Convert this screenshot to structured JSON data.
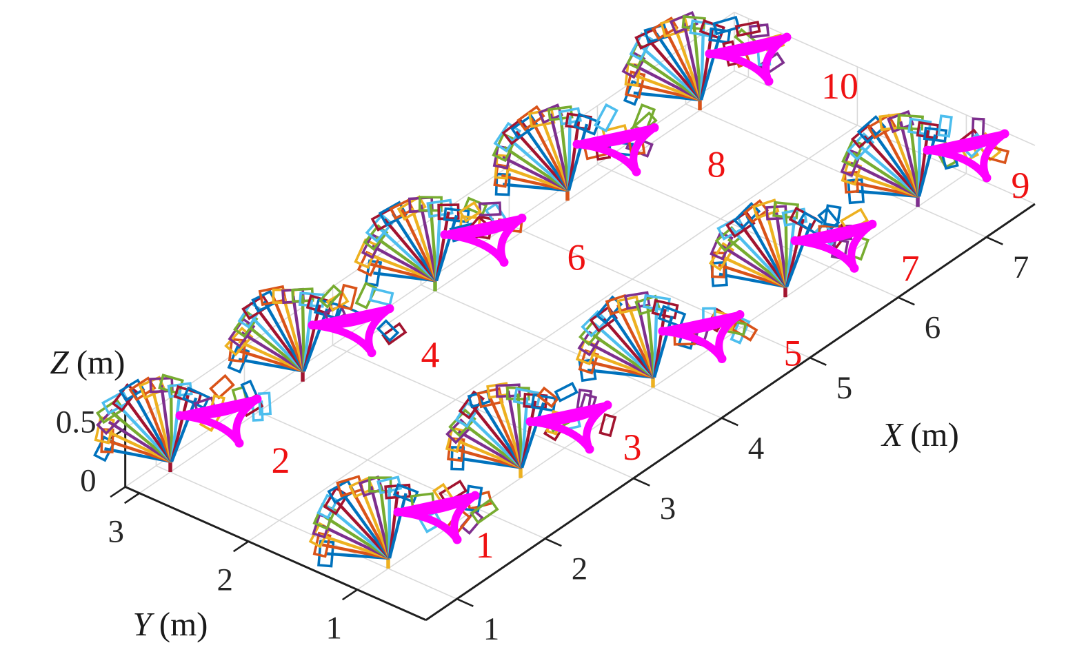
{
  "chart_data": {
    "type": "scatter",
    "title": "",
    "description": "MATLAB-style 3D plot of 10 numbered robot pose-fan trajectory clusters on a ground grid; each cluster shows a fan of colored link poses rising from a base point and a thick magenta three-cusp end-effector trajectory",
    "xlabel_letter": "X",
    "xlabel_unit": "(m)",
    "ylabel_letter": "Y",
    "ylabel_unit": "(m)",
    "zlabel_letter": "Z",
    "zlabel_unit": "(m)",
    "x_ticks": [
      1,
      2,
      3,
      4,
      5,
      6,
      7
    ],
    "y_ticks": [
      1,
      2,
      3
    ],
    "z_ticks": [
      0,
      0.5
    ],
    "xlim": [
      0.65,
      7.55
    ],
    "ylim": [
      0.37,
      3.13
    ],
    "zlim": [
      0,
      0.5
    ],
    "grid": true,
    "legend": false,
    "clusters": [
      {
        "label": "1",
        "x": 1.0,
        "y": 1.0,
        "z": 0,
        "stem_color": "#EDB120"
      },
      {
        "label": "2",
        "x": 1.0,
        "y": 3.0,
        "z": 0,
        "stem_color": "#A2142F"
      },
      {
        "label": "3",
        "x": 2.5,
        "y": 1.0,
        "z": 0,
        "stem_color": "#EDB120"
      },
      {
        "label": "4",
        "x": 2.5,
        "y": 3.0,
        "z": 0,
        "stem_color": "#A2142F"
      },
      {
        "label": "5",
        "x": 4.0,
        "y": 1.0,
        "z": 0,
        "stem_color": "#EDB120"
      },
      {
        "label": "6",
        "x": 4.0,
        "y": 3.0,
        "z": 0,
        "stem_color": "#77AC30"
      },
      {
        "label": "7",
        "x": 5.5,
        "y": 1.0,
        "z": 0,
        "stem_color": "#A2142F"
      },
      {
        "label": "8",
        "x": 5.5,
        "y": 3.0,
        "z": 0,
        "stem_color": "#D95319"
      },
      {
        "label": "9",
        "x": 7.0,
        "y": 1.0,
        "z": 0,
        "stem_color": "#7E2F8E"
      },
      {
        "label": "10",
        "x": 7.0,
        "y": 3.0,
        "z": 0,
        "stem_color": "#D95319"
      }
    ],
    "palette": [
      "#0072BD",
      "#D95319",
      "#EDB120",
      "#7E2F8E",
      "#77AC30",
      "#4DBEEE",
      "#A2142F"
    ],
    "trajectory_color": "#FF00FF",
    "label_color": "#EF1112",
    "grid_color": "#D9D9D9",
    "axis_color": "#1F1F1F",
    "background": "#FFFFFF"
  }
}
